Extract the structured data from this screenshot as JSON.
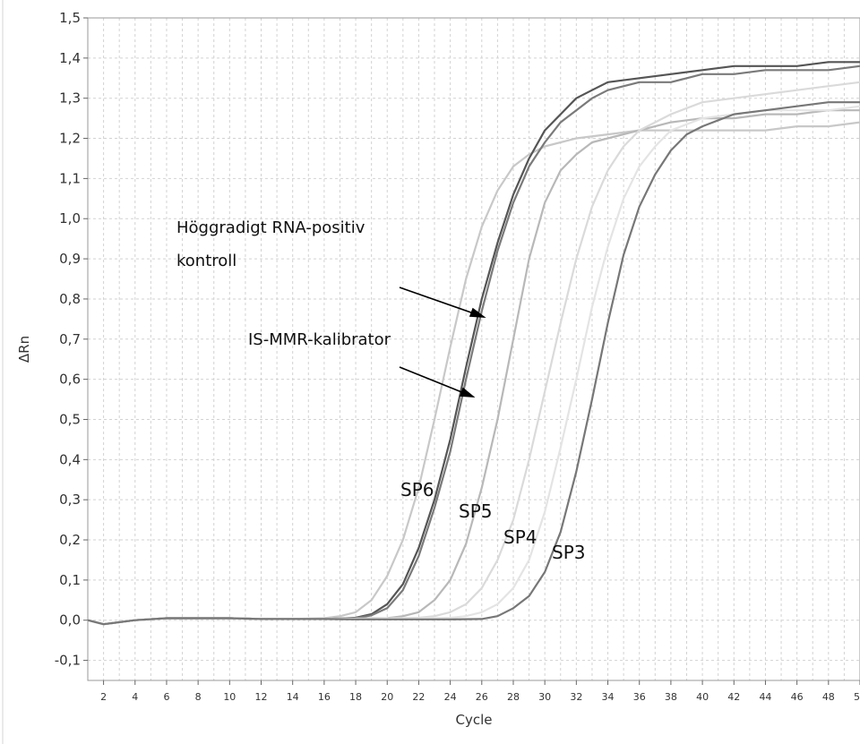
{
  "chart_data": {
    "type": "line",
    "title": "",
    "xlabel": "Cycle",
    "ylabel": "ΔRn",
    "xlim": [
      1,
      50
    ],
    "ylim": [
      -0.15,
      1.5
    ],
    "grid": true,
    "x_ticks": [
      2,
      4,
      6,
      8,
      10,
      12,
      14,
      16,
      18,
      20,
      22,
      24,
      26,
      28,
      30,
      32,
      34,
      36,
      38,
      40,
      42,
      44,
      46,
      48,
      50
    ],
    "y_ticks": [
      -0.1,
      0.0,
      0.1,
      0.2,
      0.3,
      0.4,
      0.5,
      0.6,
      0.7,
      0.8,
      0.9,
      1.0,
      1.1,
      1.2,
      1.3,
      1.4,
      1.5
    ],
    "y_tick_labels": [
      "-0,1",
      "0,0",
      "0,1",
      "0,2",
      "0,3",
      "0,4",
      "0,5",
      "0,6",
      "0,7",
      "0,8",
      "0,9",
      "1,0",
      "1,1",
      "1,2",
      "1,3",
      "1,4",
      "1,5"
    ],
    "series": [
      {
        "color": "#c8c8c8",
        "x": [
          1,
          2,
          4,
          6,
          8,
          10,
          12,
          14,
          16,
          17,
          18,
          19,
          20,
          21,
          22,
          23,
          24,
          25,
          26,
          27,
          28,
          29,
          30,
          32,
          34,
          36,
          38,
          40,
          42,
          44,
          46,
          48,
          50
        ],
        "y": [
          0.0,
          -0.01,
          0.0,
          0.005,
          0.005,
          0.005,
          0.003,
          0.003,
          0.005,
          0.01,
          0.02,
          0.05,
          0.11,
          0.2,
          0.33,
          0.5,
          0.68,
          0.85,
          0.98,
          1.07,
          1.13,
          1.16,
          1.18,
          1.2,
          1.21,
          1.22,
          1.22,
          1.22,
          1.22,
          1.22,
          1.23,
          1.23,
          1.24
        ]
      },
      {
        "color": "#555555",
        "x": [
          1,
          2,
          4,
          6,
          8,
          10,
          12,
          14,
          16,
          17,
          18,
          19,
          20,
          21,
          22,
          23,
          24,
          25,
          26,
          27,
          28,
          29,
          30,
          31,
          32,
          33,
          34,
          36,
          38,
          40,
          42,
          44,
          46,
          48,
          50
        ],
        "y": [
          0.0,
          -0.01,
          0.0,
          0.005,
          0.005,
          0.005,
          0.003,
          0.003,
          0.003,
          0.004,
          0.006,
          0.015,
          0.04,
          0.09,
          0.18,
          0.3,
          0.45,
          0.63,
          0.8,
          0.94,
          1.06,
          1.15,
          1.22,
          1.26,
          1.3,
          1.32,
          1.34,
          1.35,
          1.36,
          1.37,
          1.38,
          1.38,
          1.38,
          1.39,
          1.39
        ]
      },
      {
        "color": "#7a7a7a",
        "x": [
          1,
          2,
          4,
          6,
          8,
          10,
          12,
          14,
          16,
          17,
          18,
          19,
          20,
          21,
          22,
          23,
          24,
          25,
          26,
          27,
          28,
          29,
          30,
          31,
          32,
          33,
          34,
          36,
          38,
          40,
          42,
          44,
          46,
          48,
          50
        ],
        "y": [
          0.0,
          -0.01,
          0.0,
          0.005,
          0.005,
          0.005,
          0.003,
          0.003,
          0.003,
          0.004,
          0.005,
          0.012,
          0.03,
          0.075,
          0.16,
          0.28,
          0.42,
          0.6,
          0.77,
          0.92,
          1.04,
          1.13,
          1.19,
          1.24,
          1.27,
          1.3,
          1.32,
          1.34,
          1.34,
          1.36,
          1.36,
          1.37,
          1.37,
          1.37,
          1.38
        ]
      },
      {
        "color": "#b8b8b8",
        "x": [
          1,
          2,
          4,
          6,
          8,
          10,
          12,
          14,
          16,
          18,
          20,
          21,
          22,
          23,
          24,
          25,
          26,
          27,
          28,
          29,
          30,
          31,
          32,
          33,
          34,
          36,
          38,
          40,
          42,
          44,
          46,
          48,
          50
        ],
        "y": [
          0.0,
          -0.01,
          0.0,
          0.005,
          0.005,
          0.005,
          0.003,
          0.003,
          0.003,
          0.004,
          0.005,
          0.01,
          0.02,
          0.05,
          0.1,
          0.19,
          0.33,
          0.5,
          0.7,
          0.9,
          1.04,
          1.12,
          1.16,
          1.19,
          1.2,
          1.22,
          1.24,
          1.25,
          1.25,
          1.26,
          1.26,
          1.27,
          1.27
        ]
      },
      {
        "color": "#dadada",
        "x": [
          1,
          2,
          4,
          6,
          8,
          10,
          12,
          14,
          16,
          18,
          20,
          22,
          23,
          24,
          25,
          26,
          27,
          28,
          29,
          30,
          31,
          32,
          33,
          34,
          35,
          36,
          38,
          40,
          42,
          44,
          46,
          48,
          50
        ],
        "y": [
          0.0,
          -0.01,
          0.0,
          0.005,
          0.005,
          0.005,
          0.003,
          0.003,
          0.003,
          0.003,
          0.004,
          0.006,
          0.01,
          0.02,
          0.04,
          0.08,
          0.15,
          0.25,
          0.4,
          0.57,
          0.74,
          0.9,
          1.03,
          1.12,
          1.18,
          1.22,
          1.26,
          1.29,
          1.3,
          1.31,
          1.32,
          1.33,
          1.34
        ]
      },
      {
        "color": "#e4e4e4",
        "x": [
          1,
          2,
          4,
          6,
          8,
          10,
          12,
          14,
          16,
          18,
          20,
          22,
          24,
          25,
          26,
          27,
          28,
          29,
          30,
          31,
          32,
          33,
          34,
          35,
          36,
          37,
          38,
          40,
          42,
          44,
          46,
          48,
          50
        ],
        "y": [
          0.0,
          -0.01,
          0.0,
          0.005,
          0.005,
          0.005,
          0.003,
          0.003,
          0.003,
          0.003,
          0.003,
          0.004,
          0.006,
          0.01,
          0.02,
          0.04,
          0.08,
          0.15,
          0.27,
          0.43,
          0.6,
          0.78,
          0.93,
          1.05,
          1.13,
          1.18,
          1.22,
          1.25,
          1.26,
          1.27,
          1.27,
          1.27,
          1.28
        ]
      },
      {
        "color": "#777777",
        "x": [
          1,
          2,
          4,
          6,
          8,
          10,
          12,
          14,
          16,
          18,
          20,
          22,
          24,
          26,
          27,
          28,
          29,
          30,
          31,
          32,
          33,
          34,
          35,
          36,
          37,
          38,
          39,
          40,
          42,
          44,
          46,
          48,
          50
        ],
        "y": [
          0.0,
          -0.01,
          0.0,
          0.005,
          0.005,
          0.005,
          0.003,
          0.003,
          0.003,
          0.002,
          0.002,
          0.002,
          0.002,
          0.003,
          0.01,
          0.03,
          0.06,
          0.12,
          0.22,
          0.37,
          0.55,
          0.74,
          0.91,
          1.03,
          1.11,
          1.17,
          1.21,
          1.23,
          1.26,
          1.27,
          1.28,
          1.29,
          1.29
        ]
      }
    ],
    "annotations": [
      {
        "text": "Höggradigt RNA-positiv"
      },
      {
        "text": "kontroll"
      },
      {
        "text": "IS-MMR-kalibrator"
      },
      {
        "text": "SP6"
      },
      {
        "text": "SP5"
      },
      {
        "text": "SP4"
      },
      {
        "text": "SP3"
      }
    ]
  }
}
